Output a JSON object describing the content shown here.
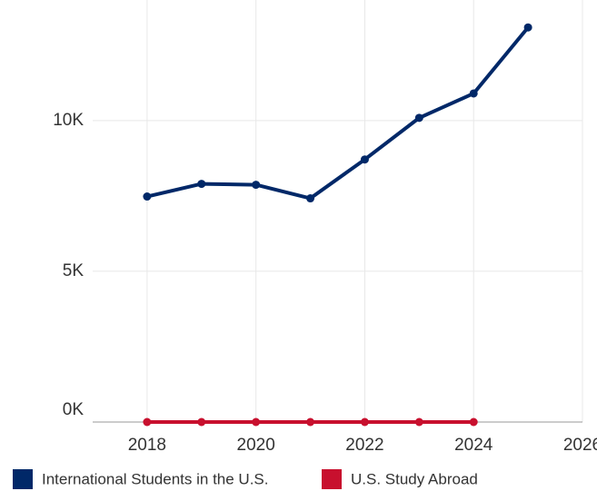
{
  "chart_data": {
    "type": "line",
    "x": [
      2018,
      2019,
      2020,
      2021,
      2022,
      2023,
      2024,
      2025
    ],
    "series": [
      {
        "name": "International Students in the U.S.",
        "color": "#002868",
        "values": [
          7480,
          7900,
          7870,
          7420,
          8710,
          10090,
          10900,
          13090
        ]
      },
      {
        "name": "U.S. Study Abroad",
        "color": "#c8102e",
        "values": [
          0,
          0,
          0,
          0,
          0,
          0,
          0,
          null
        ]
      }
    ],
    "xlim": [
      2017,
      2026
    ],
    "xticks": [
      2018,
      2020,
      2022,
      2024,
      2026
    ],
    "ylim": [
      0,
      14000
    ],
    "yticks": [
      {
        "value": 0,
        "label": "0K"
      },
      {
        "value": 5000,
        "label": "5K"
      },
      {
        "value": 10000,
        "label": "10K"
      }
    ],
    "grid": true,
    "legend": "bottom"
  }
}
